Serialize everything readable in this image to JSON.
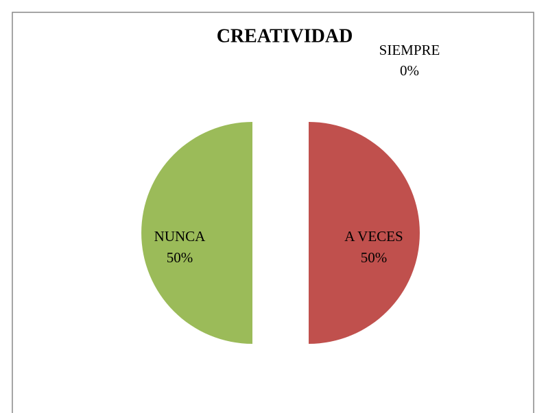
{
  "chart_data": {
    "type": "pie",
    "title": "CREATIVIDAD",
    "categories": [
      "SIEMPRE",
      "A VECES",
      "NUNCA"
    ],
    "values": [
      0,
      50,
      50
    ],
    "value_labels": [
      "0%",
      "50%",
      "50%"
    ],
    "colors": [
      "#4f81bd",
      "#c0504d",
      "#9bbb59"
    ]
  }
}
